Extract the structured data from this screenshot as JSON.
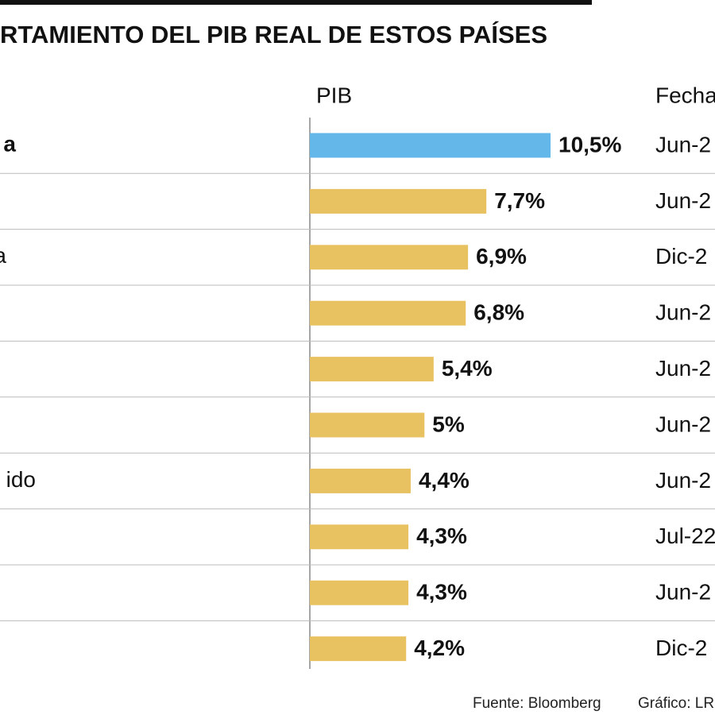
{
  "chart_data": {
    "type": "bar",
    "title": "RTAMIENTO DEL PIB REAL DE ESTOS PAÍSES",
    "value_header": "PIB",
    "date_header": "Fecha",
    "categories": [
      "a",
      null,
      "a",
      null,
      null,
      null,
      "ido",
      null,
      null,
      null
    ],
    "values": [
      10.5,
      7.7,
      6.9,
      6.8,
      5.4,
      5,
      4.4,
      4.3,
      4.3,
      4.2
    ],
    "value_labels": [
      "10,5%",
      "7,7%",
      "6,9%",
      "6,8%",
      "5,4%",
      "5%",
      "4,4%",
      "4,3%",
      "4,3%",
      "4,2%"
    ],
    "dates": [
      "Jun-2",
      "Jun-2",
      "Dic-2",
      "Jun-2",
      "Jun-2",
      "Jun-2",
      "Jun-2",
      "Jul-22",
      "Jun-2",
      "Dic-2"
    ],
    "colors": [
      "#63b7e9",
      "#e8c160",
      "#e8c160",
      "#e8c160",
      "#e8c160",
      "#e8c160",
      "#e8c160",
      "#e8c160",
      "#e8c160",
      "#e8c160"
    ],
    "source": "Fuente: Bloomberg",
    "credit": "Gráfico: LR"
  }
}
